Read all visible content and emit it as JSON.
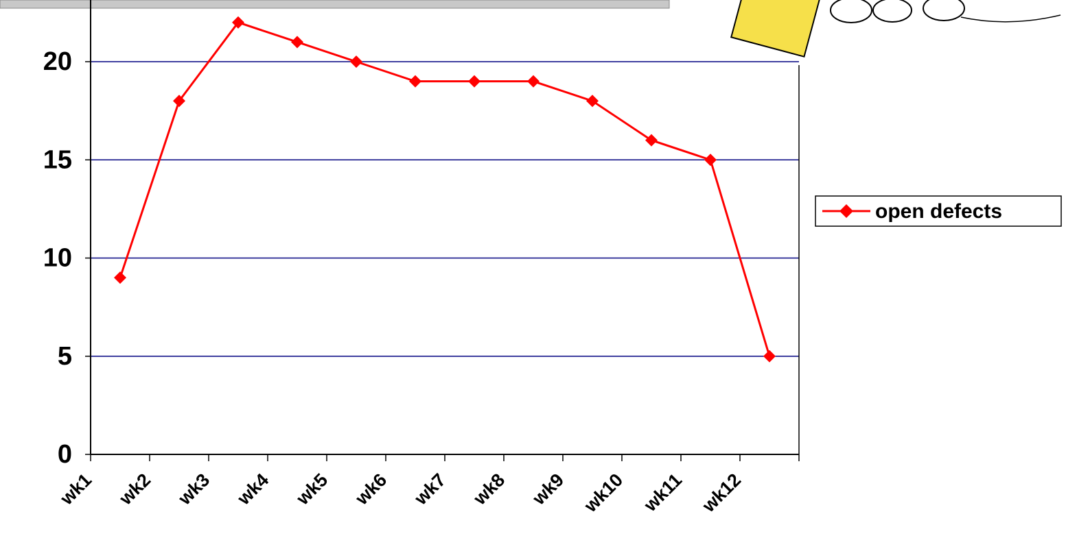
{
  "chart_data": {
    "type": "line",
    "categories": [
      "wk1",
      "wk2",
      "wk3",
      "wk4",
      "wk5",
      "wk6",
      "wk7",
      "wk8",
      "wk9",
      "wk10",
      "wk11",
      "wk12"
    ],
    "series": [
      {
        "name": "open defects",
        "color": "#ff0000",
        "values": [
          9,
          18,
          22,
          21,
          20,
          19,
          19,
          19,
          18,
          16,
          15,
          5
        ]
      }
    ],
    "ylim": [
      0,
      23
    ],
    "yticks": [
      0,
      5,
      10,
      15,
      20
    ],
    "grid": true,
    "grid_color": "#000080",
    "legend": "right"
  }
}
